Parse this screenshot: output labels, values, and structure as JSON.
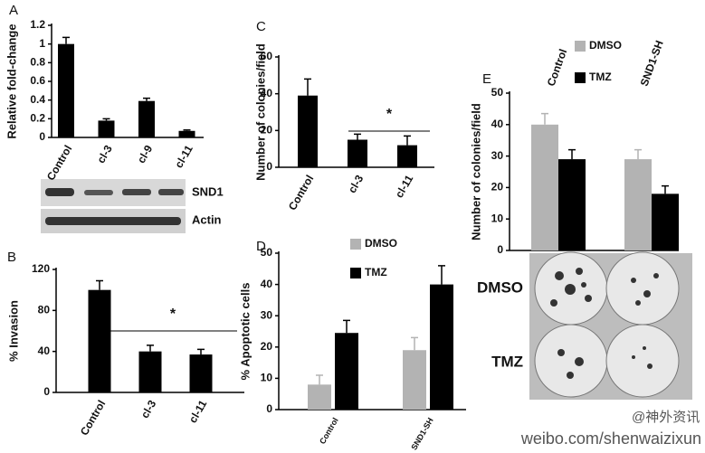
{
  "chart_data": [
    {
      "type": "bar",
      "panel_label": "A",
      "y_label": "Relative fold-change",
      "categories": [
        "Control",
        "cl-3",
        "cl-9",
        "cl-11"
      ],
      "series": [
        {
          "color": "#000000",
          "values": [
            1.0,
            0.18,
            0.39,
            0.07
          ],
          "errors": [
            0.07,
            0.02,
            0.03,
            0.01
          ]
        }
      ],
      "ylim": [
        0,
        1.2
      ],
      "yticks": [
        0,
        0.2,
        0.4,
        0.6,
        0.8,
        1,
        1.2
      ],
      "blot_labels": [
        "SND1",
        "Actin"
      ]
    },
    {
      "type": "bar",
      "panel_label": "B",
      "y_label": "% Invasion",
      "categories": [
        "Control",
        "cl-3",
        "cl-11"
      ],
      "series": [
        {
          "color": "#000000",
          "values": [
            100,
            40,
            37
          ],
          "errors": [
            9,
            6,
            5
          ]
        }
      ],
      "ylim": [
        0,
        120
      ],
      "yticks": [
        0,
        40,
        80,
        120
      ],
      "annotation": "*"
    },
    {
      "type": "bar",
      "panel_label": "C",
      "y_label": "Number of colonies/field",
      "categories": [
        "Control",
        "cl-3",
        "cl-11"
      ],
      "series": [
        {
          "color": "#000000",
          "values": [
            39,
            15,
            12
          ],
          "errors": [
            9,
            3,
            5
          ]
        }
      ],
      "ylim": [
        0,
        60
      ],
      "yticks": [
        0,
        20,
        40,
        60
      ],
      "annotation": "*"
    },
    {
      "type": "bar",
      "panel_label": "D",
      "y_label": "% Apoptotic cells",
      "categories": [
        "Control",
        "SND1-SH"
      ],
      "series": [
        {
          "name": "DMSO",
          "color": "#b3b3b3",
          "values": [
            8,
            19
          ],
          "errors": [
            3,
            4
          ]
        },
        {
          "name": "TMZ",
          "color": "#000000",
          "values": [
            24.5,
            40
          ],
          "errors": [
            4,
            6
          ]
        }
      ],
      "ylim": [
        0,
        50
      ],
      "yticks": [
        0,
        10,
        20,
        30,
        40,
        50
      ]
    },
    {
      "type": "bar",
      "panel_label": "E",
      "y_label": "Number of colonies/field",
      "categories": [
        "Control",
        "SND1-SH"
      ],
      "series": [
        {
          "name": "DMSO",
          "color": "#b3b3b3",
          "values": [
            40,
            29
          ],
          "errors": [
            3.5,
            3
          ]
        },
        {
          "name": "TMZ",
          "color": "#000000",
          "values": [
            29,
            18
          ],
          "errors": [
            3,
            2.5
          ]
        }
      ],
      "ylim": [
        0,
        50
      ],
      "yticks": [
        0,
        10,
        20,
        30,
        40,
        50
      ],
      "plate_labels": [
        "DMSO",
        "TMZ"
      ]
    }
  ],
  "watermark": {
    "handle": "@神外资讯",
    "url": "weibo.com/shenwaizixun"
  }
}
